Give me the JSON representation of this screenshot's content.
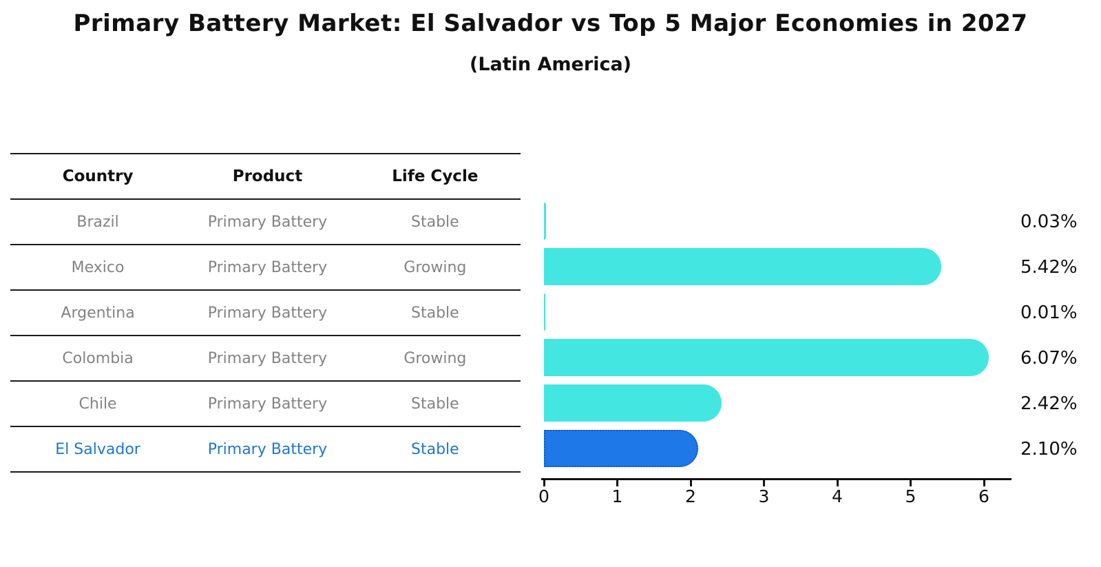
{
  "title": "Primary Battery Market: El Salvador vs Top 5 Major Economies in 2027",
  "subtitle": "(Latin America)",
  "table": {
    "headers": [
      "Country",
      "Product",
      "Life Cycle"
    ],
    "rows": [
      {
        "country": "Brazil",
        "product": "Primary Battery",
        "life_cycle": "Stable",
        "value_label": "0.03%",
        "highlight": false
      },
      {
        "country": "Mexico",
        "product": "Primary Battery",
        "life_cycle": "Growing",
        "value_label": "5.42%",
        "highlight": false
      },
      {
        "country": "Argentina",
        "product": "Primary Battery",
        "life_cycle": "Stable",
        "value_label": "0.01%",
        "highlight": false
      },
      {
        "country": "Colombia",
        "product": "Primary Battery",
        "life_cycle": "Growing",
        "value_label": "6.07%",
        "highlight": false
      },
      {
        "country": "Chile",
        "product": "Primary Battery",
        "life_cycle": "Stable",
        "value_label": "2.42%",
        "highlight": false
      },
      {
        "country": "El Salvador",
        "product": "Primary Battery",
        "life_cycle": "Stable",
        "value_label": "2.10%",
        "highlight": true
      }
    ]
  },
  "chart_data": {
    "type": "bar",
    "orientation": "horizontal",
    "title": "Primary Battery Market: El Salvador vs Top 5 Major Economies in 2027",
    "subtitle": "(Latin America)",
    "categories": [
      "Brazil",
      "Mexico",
      "Argentina",
      "Colombia",
      "Chile",
      "El Salvador"
    ],
    "values": [
      0.03,
      5.42,
      0.01,
      6.07,
      2.42,
      2.1
    ],
    "value_labels": [
      "0.03%",
      "5.42%",
      "0.01%",
      "6.07%",
      "2.42%",
      "2.10%"
    ],
    "unit": "%",
    "xlim": [
      0,
      6.4
    ],
    "x_ticks": [
      "0",
      "1",
      "2",
      "3",
      "4",
      "5",
      "6"
    ],
    "grid": false,
    "legend": false,
    "highlight_index": 5
  },
  "colors": {
    "bar_default": "#43E6E1",
    "bar_highlight": "#1E78E8",
    "bar_highlight_border": "#0B5CCC",
    "row_text": "#838383",
    "highlight_text": "#1F77CF",
    "header_text": "#111111",
    "axis": "#111111",
    "value_text": "#111111"
  }
}
